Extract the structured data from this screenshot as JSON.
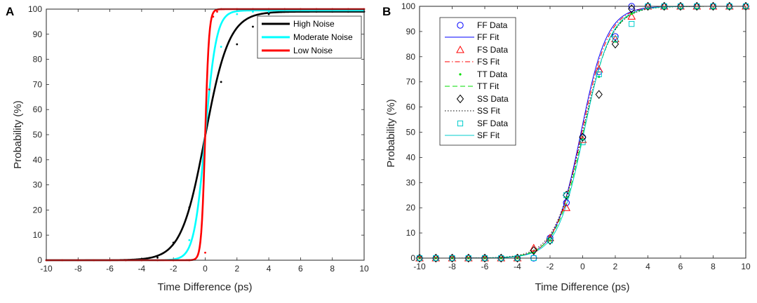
{
  "chart_data": [
    {
      "panel": "A",
      "type": "line",
      "xlabel": "Time Difference (ps)",
      "ylabel": "Probability (%)",
      "xlim": [
        -10,
        10
      ],
      "ylim": [
        0,
        100
      ],
      "xticks": [
        -10,
        -8,
        -6,
        -4,
        -2,
        0,
        2,
        4,
        6,
        8,
        10
      ],
      "yticks": [
        0,
        10,
        20,
        30,
        40,
        50,
        60,
        70,
        80,
        90,
        100
      ],
      "legend_position": "top-right",
      "series": [
        {
          "name": "High Noise",
          "color": "#000000",
          "fit": {
            "model": "logistic",
            "midpoint": 0,
            "scale": 0.75,
            "max": 99
          },
          "points": [
            [
              -10,
              0
            ],
            [
              -9,
              0
            ],
            [
              -8,
              0
            ],
            [
              -7,
              0
            ],
            [
              -6,
              0
            ],
            [
              -5,
              0
            ],
            [
              -4,
              0
            ],
            [
              -3,
              1
            ],
            [
              -2,
              7
            ],
            [
              -1,
              21
            ],
            [
              0,
              50
            ],
            [
              1,
              71
            ],
            [
              2,
              86
            ],
            [
              3,
              93
            ],
            [
              4,
              98
            ],
            [
              5,
              99
            ],
            [
              6,
              99
            ],
            [
              7,
              99
            ],
            [
              8,
              99
            ],
            [
              9,
              99
            ],
            [
              10,
              99
            ]
          ]
        },
        {
          "name": "Moderate Noise",
          "color": "#00FFFF",
          "fit": {
            "model": "logistic",
            "midpoint": 0,
            "scale": 0.35,
            "max": 99.5
          },
          "points": [
            [
              -10,
              0
            ],
            [
              -9,
              0
            ],
            [
              -8,
              0
            ],
            [
              -7,
              0
            ],
            [
              -6,
              0
            ],
            [
              -5,
              0
            ],
            [
              -4,
              0
            ],
            [
              -3,
              0
            ],
            [
              -2,
              0
            ],
            [
              -1,
              8
            ],
            [
              0,
              50
            ],
            [
              1,
              85
            ],
            [
              2,
              98
            ],
            [
              3,
              99
            ],
            [
              4,
              99
            ],
            [
              5,
              100
            ],
            [
              6,
              100
            ],
            [
              7,
              100
            ],
            [
              8,
              100
            ],
            [
              9,
              100
            ],
            [
              10,
              100
            ]
          ]
        },
        {
          "name": "Low Noise",
          "color": "#FF0000",
          "fit": {
            "model": "logistic",
            "midpoint": 0,
            "scale": 0.12,
            "max": 100
          },
          "points": [
            [
              -10,
              0
            ],
            [
              -9,
              0
            ],
            [
              -8,
              0
            ],
            [
              -7,
              0
            ],
            [
              -6,
              0
            ],
            [
              -5,
              0
            ],
            [
              -4,
              0
            ],
            [
              -3,
              0
            ],
            [
              -2,
              0
            ],
            [
              -1,
              0
            ],
            [
              0,
              3
            ],
            [
              0.25,
              68
            ],
            [
              0.5,
              97
            ],
            [
              0.75,
              99
            ],
            [
              1,
              100
            ],
            [
              2,
              100
            ],
            [
              3,
              100
            ],
            [
              4,
              100
            ],
            [
              5,
              100
            ],
            [
              6,
              100
            ],
            [
              7,
              100
            ],
            [
              8,
              100
            ],
            [
              9,
              100
            ],
            [
              10,
              100
            ]
          ]
        }
      ]
    },
    {
      "panel": "B",
      "type": "scatter",
      "xlabel": "Time Difference (ps)",
      "ylabel": "Probability (%)",
      "xlim": [
        -10,
        10
      ],
      "ylim": [
        0,
        100
      ],
      "xticks": [
        -10,
        -8,
        -6,
        -4,
        -2,
        0,
        2,
        4,
        6,
        8,
        10
      ],
      "yticks": [
        0,
        10,
        20,
        30,
        40,
        50,
        60,
        70,
        80,
        90,
        100
      ],
      "legend_position": "top-left",
      "x": [
        -10,
        -9,
        -8,
        -7,
        -6,
        -5,
        -4,
        -3,
        -2,
        -1,
        0,
        1,
        2,
        3,
        4,
        5,
        6,
        7,
        8,
        9,
        10
      ],
      "series": [
        {
          "name": "FF",
          "data_label": "FF Data",
          "fit_label": "FF Fit",
          "marker": "circle",
          "fit_style": "solid",
          "color": "#0000FF",
          "fit": {
            "midpoint": -0.1,
            "scale": 0.8
          },
          "values": [
            0,
            0,
            0,
            0,
            0,
            0,
            0,
            0,
            8,
            22,
            48,
            74,
            88,
            100,
            100,
            100,
            100,
            100,
            100,
            100,
            100
          ]
        },
        {
          "name": "FS",
          "data_label": "FS Data",
          "fit_label": "FS Fit",
          "marker": "triangle",
          "fit_style": "dashdot",
          "color": "#FF0000",
          "fit": {
            "midpoint": -0.05,
            "scale": 0.82
          },
          "values": [
            0,
            0,
            0,
            0,
            0,
            0,
            0,
            4,
            8,
            20,
            47,
            75,
            87,
            96,
            100,
            100,
            100,
            100,
            100,
            100,
            100
          ]
        },
        {
          "name": "TT",
          "data_label": "TT Data",
          "fit_label": "TT Fit",
          "marker": "dot",
          "fit_style": "dashed",
          "color": "#00DD00",
          "fit": {
            "midpoint": 0.05,
            "scale": 0.85
          },
          "values": [
            0,
            0,
            0,
            0,
            0,
            0,
            0,
            2,
            7,
            24,
            47,
            72,
            86,
            97,
            99,
            99,
            99,
            99,
            99,
            99,
            99
          ]
        },
        {
          "name": "SS",
          "data_label": "SS Data",
          "fit_label": "SS Fit",
          "marker": "diamond",
          "fit_style": "dotted",
          "color": "#000000",
          "fit": {
            "midpoint": 0.0,
            "scale": 0.88
          },
          "values": [
            0,
            0,
            0,
            0,
            0,
            0,
            0,
            3,
            7,
            25,
            48,
            65,
            85,
            99,
            100,
            100,
            100,
            100,
            100,
            100,
            100
          ]
        },
        {
          "name": "SF",
          "data_label": "SF Data",
          "fit_label": "SF Fit",
          "marker": "square",
          "fit_style": "solid",
          "color": "#00CCCC",
          "fit": {
            "midpoint": 0.08,
            "scale": 0.82
          },
          "values": [
            0,
            0,
            0,
            0,
            0,
            0,
            0,
            0,
            7,
            25,
            46,
            73,
            87,
            93,
            100,
            100,
            100,
            100,
            100,
            100,
            100
          ]
        }
      ]
    }
  ]
}
